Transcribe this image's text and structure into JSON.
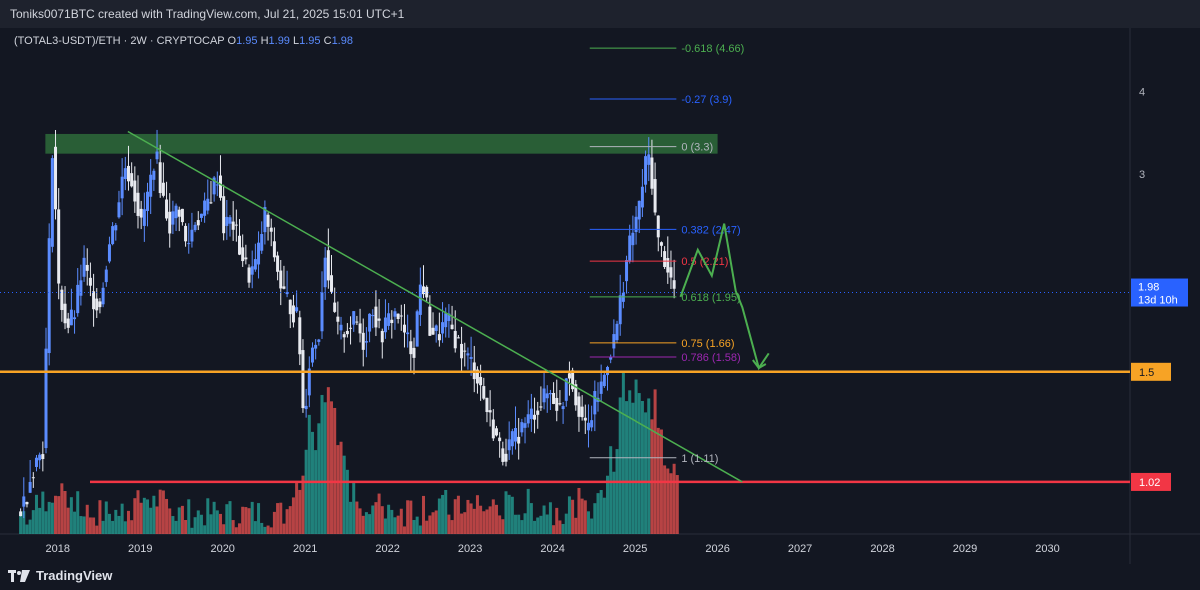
{
  "header": {
    "attribution": "Toniks0071BTC created with TradingView.com, Jul 21, 2025 15:01 UTC+1"
  },
  "legend": {
    "symbol": "(TOTAL3-USDT)/ETH · 2W · CRYPTOCAP",
    "o_label": "O",
    "o_value": "1.95",
    "h_label": "H",
    "h_value": "1.99",
    "l_label": "L",
    "l_value": "1.95",
    "c_label": "C",
    "c_value": "1.98"
  },
  "footer": {
    "brand": "TradingView"
  },
  "colors": {
    "background": "#131722",
    "up": "#5b8cff",
    "down": "#e8eaf0",
    "vol_up": "#26a69a",
    "vol_down": "#ef5350",
    "support": "#f7a325",
    "floor": "#f23645",
    "trendline": "#4caf50",
    "resistance_zone": "#2e6b3a",
    "projection": "#4caf50"
  },
  "chart_data": {
    "type": "candlestick",
    "interval": "2W",
    "y_scale": "log",
    "ylim": [
      0.85,
      5.0
    ],
    "y_ticks": [
      "3",
      "4"
    ],
    "x_ticks": [
      "2018",
      "2019",
      "2020",
      "2021",
      "2022",
      "2023",
      "2024",
      "2025",
      "2026",
      "2027",
      "2028",
      "2029",
      "2030"
    ],
    "xlim": [
      2017.3,
      2031.0
    ],
    "last_price": {
      "value": "1.98",
      "countdown": "13d 10h"
    },
    "price_labels": [
      {
        "value": "1.5",
        "color": "#f7a325"
      },
      {
        "value": "1.02",
        "color": "#f23645"
      }
    ],
    "horizontal_lines": [
      {
        "y": 1.5,
        "color": "#f7a325",
        "name": "support"
      },
      {
        "y": 1.02,
        "color": "#f23645",
        "name": "floor"
      }
    ],
    "resistance_zone": {
      "y_low": 3.22,
      "y_high": 3.45,
      "x_start": 2017.85,
      "x_end": 2026.0
    },
    "trendline": {
      "x1": 2018.85,
      "y1": 3.48,
      "x2": 2026.3,
      "y2": 1.02
    },
    "fibonacci": {
      "x_start": 2024.45,
      "x_end_short": 2025.6,
      "levels": [
        {
          "label": "-0.618 (4.66)",
          "value": 4.66,
          "color": "#4caf50",
          "x_end": 2025.5
        },
        {
          "label": "-0.27 (3.9)",
          "value": 3.9,
          "color": "#2962ff",
          "x_end": 2025.5
        },
        {
          "label": "0 (3.3)",
          "value": 3.3,
          "color": "#b2b5be",
          "x_end": 2025.5
        },
        {
          "label": "0.382 (2.47)",
          "value": 2.47,
          "color": "#2962ff",
          "x_end": 2025.5
        },
        {
          "label": "0.5 (2.21)",
          "value": 2.21,
          "color": "#f23645",
          "x_end": 2025.5
        },
        {
          "label": "0.618 (1.95)",
          "value": 1.95,
          "color": "#4caf50",
          "x_end": 2025.5
        },
        {
          "label": "0.75 (1.66)",
          "value": 1.66,
          "color": "#f7a325",
          "x_end": 2025.5
        },
        {
          "label": "0.786 (1.58)",
          "value": 1.58,
          "color": "#9c27b0",
          "x_end": 2025.5
        },
        {
          "label": "1 (1.11)",
          "value": 1.11,
          "color": "#b2b5be",
          "x_end": 2025.5
        }
      ]
    },
    "projection_path": [
      [
        2025.55,
        1.95
      ],
      [
        2025.76,
        2.3
      ],
      [
        2025.93,
        2.1
      ],
      [
        2026.08,
        2.52
      ],
      [
        2026.22,
        1.99
      ],
      [
        2026.3,
        1.88
      ],
      [
        2026.5,
        1.52
      ],
      [
        2026.62,
        1.6
      ]
    ],
    "price_path": [
      [
        2017.55,
        0.92
      ],
      [
        2017.65,
        0.96
      ],
      [
        2017.72,
        1.06
      ],
      [
        2017.78,
        1.1
      ],
      [
        2017.86,
        1.15
      ],
      [
        2017.92,
        1.9
      ],
      [
        2017.97,
        3.35
      ],
      [
        2018.05,
        2.0
      ],
      [
        2018.15,
        1.75
      ],
      [
        2018.25,
        1.85
      ],
      [
        2018.35,
        2.2
      ],
      [
        2018.45,
        1.95
      ],
      [
        2018.55,
        1.9
      ],
      [
        2018.65,
        2.3
      ],
      [
        2018.75,
        2.6
      ],
      [
        2018.85,
        3.1
      ],
      [
        2018.95,
        2.9
      ],
      [
        2019.05,
        2.5
      ],
      [
        2019.15,
        2.85
      ],
      [
        2019.22,
        3.25
      ],
      [
        2019.3,
        2.8
      ],
      [
        2019.4,
        2.5
      ],
      [
        2019.5,
        2.7
      ],
      [
        2019.6,
        2.3
      ],
      [
        2019.7,
        2.55
      ],
      [
        2019.8,
        2.6
      ],
      [
        2019.9,
        2.8
      ],
      [
        2019.98,
        3.0
      ],
      [
        2020.05,
        2.5
      ],
      [
        2020.15,
        2.55
      ],
      [
        2020.25,
        2.3
      ],
      [
        2020.35,
        2.1
      ],
      [
        2020.45,
        2.2
      ],
      [
        2020.55,
        2.6
      ],
      [
        2020.65,
        2.3
      ],
      [
        2020.75,
        2.0
      ],
      [
        2020.85,
        1.9
      ],
      [
        2020.95,
        1.8
      ],
      [
        2021.02,
        1.25
      ],
      [
        2021.1,
        1.6
      ],
      [
        2021.2,
        1.7
      ],
      [
        2021.28,
        2.3
      ],
      [
        2021.36,
        1.9
      ],
      [
        2021.45,
        1.7
      ],
      [
        2021.55,
        1.75
      ],
      [
        2021.65,
        1.8
      ],
      [
        2021.75,
        1.65
      ],
      [
        2021.85,
        1.9
      ],
      [
        2021.95,
        1.7
      ],
      [
        2022.05,
        1.8
      ],
      [
        2022.15,
        1.85
      ],
      [
        2022.25,
        1.7
      ],
      [
        2022.35,
        1.6
      ],
      [
        2022.45,
        2.1
      ],
      [
        2022.55,
        1.75
      ],
      [
        2022.65,
        1.7
      ],
      [
        2022.75,
        1.8
      ],
      [
        2022.85,
        1.7
      ],
      [
        2022.95,
        1.6
      ],
      [
        2023.05,
        1.55
      ],
      [
        2023.15,
        1.45
      ],
      [
        2023.25,
        1.3
      ],
      [
        2023.35,
        1.2
      ],
      [
        2023.42,
        1.12
      ],
      [
        2023.5,
        1.15
      ],
      [
        2023.6,
        1.2
      ],
      [
        2023.7,
        1.25
      ],
      [
        2023.8,
        1.3
      ],
      [
        2023.9,
        1.35
      ],
      [
        2024.0,
        1.4
      ],
      [
        2024.08,
        1.35
      ],
      [
        2024.15,
        1.3
      ],
      [
        2024.22,
        1.55
      ],
      [
        2024.3,
        1.4
      ],
      [
        2024.38,
        1.3
      ],
      [
        2024.45,
        1.2
      ],
      [
        2024.55,
        1.35
      ],
      [
        2024.65,
        1.45
      ],
      [
        2024.72,
        1.6
      ],
      [
        2024.8,
        1.7
      ],
      [
        2024.88,
        2.0
      ],
      [
        2024.96,
        2.3
      ],
      [
        2025.03,
        2.5
      ],
      [
        2025.1,
        2.7
      ],
      [
        2025.15,
        3.05
      ],
      [
        2025.2,
        3.2
      ],
      [
        2025.25,
        2.9
      ],
      [
        2025.3,
        2.4
      ],
      [
        2025.35,
        2.3
      ],
      [
        2025.42,
        2.2
      ],
      [
        2025.48,
        2.05
      ],
      [
        2025.52,
        1.98
      ]
    ],
    "volume_spikes": [
      [
        2018.0,
        0.3
      ],
      [
        2019.1,
        0.2
      ],
      [
        2021.1,
        0.8
      ],
      [
        2021.3,
        0.9
      ],
      [
        2024.85,
        1.0
      ],
      [
        2025.05,
        0.95
      ],
      [
        2025.3,
        0.8
      ]
    ]
  }
}
